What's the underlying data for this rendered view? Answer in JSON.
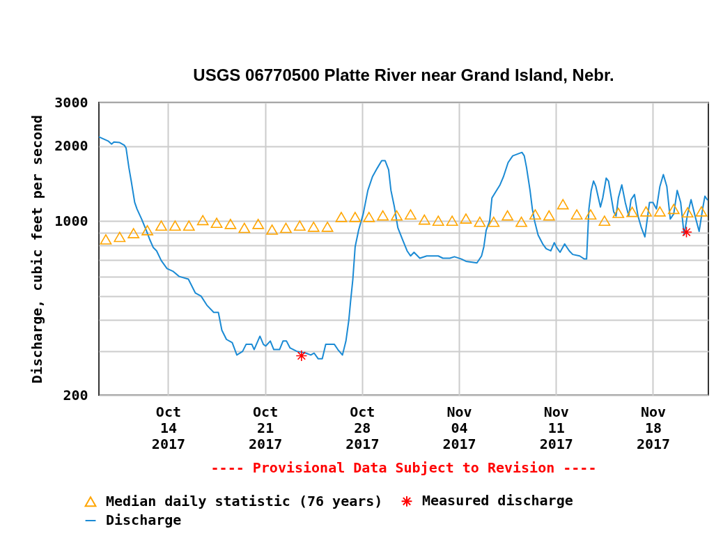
{
  "chart_data": {
    "type": "line",
    "title": "USGS 06770500 Platte River near Grand Island, Nebr.",
    "ylabel": "Discharge, cubic feet per second",
    "annotations": [
      "---- Provisional Data Subject to Revision ----"
    ],
    "xlim": [
      "2017-10-09",
      "2017-11-22"
    ],
    "xticks": [
      {
        "value": "2017-10-14",
        "label": "Oct\n14\n2017"
      },
      {
        "value": "2017-10-21",
        "label": "Oct\n21\n2017"
      },
      {
        "value": "2017-10-28",
        "label": "Oct\n28\n2017"
      },
      {
        "value": "2017-11-04",
        "label": "Nov\n04\n2017"
      },
      {
        "value": "2017-11-11",
        "label": "Nov\n11\n2017"
      },
      {
        "value": "2017-11-18",
        "label": "Nov\n18\n2017"
      }
    ],
    "ylim": [
      200,
      3000
    ],
    "yticks": [
      200,
      {
        "value": 300,
        "label": null
      },
      {
        "value": 400,
        "label": null
      },
      {
        "value": 500,
        "label": null
      },
      {
        "value": 600,
        "label": null
      },
      {
        "value": 700,
        "label": null
      },
      {
        "value": 800,
        "label": null
      },
      {
        "value": 900,
        "label": null
      },
      1000,
      2000,
      3000
    ],
    "log": true,
    "grid": true,
    "legend": "bottom",
    "series": [
      {
        "name": "Median daily statistic (76 years)",
        "type": "scatter",
        "marker": "triangle",
        "color": "#ffa500",
        "x": [
          "2017-10-09T12:00",
          "2017-10-10T12:00",
          "2017-10-11T12:00",
          "2017-10-12T12:00",
          "2017-10-13T12:00",
          "2017-10-14T12:00",
          "2017-10-15T12:00",
          "2017-10-16T12:00",
          "2017-10-17T12:00",
          "2017-10-18T12:00",
          "2017-10-19T12:00",
          "2017-10-20T12:00",
          "2017-10-21T12:00",
          "2017-10-22T12:00",
          "2017-10-23T12:00",
          "2017-10-24T12:00",
          "2017-10-25T12:00",
          "2017-10-26T12:00",
          "2017-10-27T12:00",
          "2017-10-28T12:00",
          "2017-10-29T12:00",
          "2017-10-30T12:00",
          "2017-10-31T12:00",
          "2017-11-01T12:00",
          "2017-11-02T12:00",
          "2017-11-03T12:00",
          "2017-11-04T12:00",
          "2017-11-05T12:00",
          "2017-11-06T12:00",
          "2017-11-07T12:00",
          "2017-11-08T12:00",
          "2017-11-09T12:00",
          "2017-11-10T12:00",
          "2017-11-11T12:00",
          "2017-11-12T12:00",
          "2017-11-13T12:00",
          "2017-11-14T12:00",
          "2017-11-15T12:00",
          "2017-11-16T12:00",
          "2017-11-17T12:00",
          "2017-11-18T12:00",
          "2017-11-19T12:00",
          "2017-11-20T12:00",
          "2017-11-21T12:00"
        ],
        "values": [
          845,
          865,
          895,
          920,
          960,
          960,
          960,
          1010,
          985,
          975,
          940,
          975,
          925,
          940,
          960,
          950,
          950,
          1040,
          1040,
          1040,
          1055,
          1055,
          1065,
          1015,
          1005,
          1005,
          1025,
          995,
          995,
          1055,
          995,
          1065,
          1055,
          1170,
          1065,
          1065,
          1005,
          1080,
          1090,
          1095,
          1095,
          1120,
          1085,
          1095
        ]
      },
      {
        "name": "Measured discharge",
        "type": "scatter",
        "marker": "cross",
        "color": "#ff0000",
        "x": [
          "2017-10-23T15:00",
          "2017-11-20T10:00"
        ],
        "values": [
          288,
          904
        ]
      },
      {
        "name": "Discharge",
        "color": "#1a8ad4",
        "x": [
          "2017-10-09T00:00",
          "2017-10-09T06:00",
          "2017-10-09T16:00",
          "2017-10-09T22:00",
          "2017-10-10T02:00",
          "2017-10-10T12:00",
          "2017-10-10T20:00",
          "2017-10-10T23:00",
          "2017-10-11T04:00",
          "2017-10-11T08:00",
          "2017-10-11T14:00",
          "2017-10-11T18:00",
          "2017-10-12T02:00",
          "2017-10-12T10:00",
          "2017-10-12T16:00",
          "2017-10-12T22:00",
          "2017-10-13T04:00",
          "2017-10-13T12:00",
          "2017-10-13T22:00",
          "2017-10-14T08:00",
          "2017-10-14T19:00",
          "2017-10-15T11:00",
          "2017-10-15T23:00",
          "2017-10-16T09:00",
          "2017-10-16T19:00",
          "2017-10-17T07:00",
          "2017-10-17T15:00",
          "2017-10-17T21:00",
          "2017-10-18T05:00",
          "2017-10-18T15:00",
          "2017-10-18T23:00",
          "2017-10-19T09:00",
          "2017-10-19T15:00",
          "2017-10-20T01:00",
          "2017-10-20T05:00",
          "2017-10-20T15:00",
          "2017-10-20T21:00",
          "2017-10-21T01:00",
          "2017-10-21T09:00",
          "2017-10-21T15:00",
          "2017-10-22T01:00",
          "2017-10-22T07:00",
          "2017-10-22T13:00",
          "2017-10-22T19:00",
          "2017-10-23T07:00",
          "2017-10-23T23:00",
          "2017-10-24T07:00",
          "2017-10-24T13:00",
          "2017-10-24T20:00",
          "2017-10-25T03:00",
          "2017-10-25T09:00",
          "2017-10-26T00:00",
          "2017-10-26T06:00",
          "2017-10-26T14:00",
          "2017-10-26T20:00",
          "2017-10-27T01:00",
          "2017-10-27T04:00",
          "2017-10-27T08:00",
          "2017-10-27T12:00",
          "2017-10-27T18:00",
          "2017-10-28T02:00",
          "2017-10-28T10:00",
          "2017-10-28T18:00",
          "2017-10-29T02:00",
          "2017-10-29T10:00",
          "2017-10-29T16:00",
          "2017-10-29T22:00",
          "2017-10-30T02:00",
          "2017-10-30T08:00",
          "2017-10-30T14:00",
          "2017-10-30T22:00",
          "2017-10-31T06:00",
          "2017-10-31T12:00",
          "2017-10-31T18:00",
          "2017-11-01T04:00",
          "2017-11-01T16:00",
          "2017-11-02T12:00",
          "2017-11-02T20:00",
          "2017-11-03T08:00",
          "2017-11-03T16:00",
          "2017-11-04T04:00",
          "2017-11-04T12:00",
          "2017-11-05T07:00",
          "2017-11-05T15:00",
          "2017-11-05T19:00",
          "2017-11-05T23:00",
          "2017-11-06T05:00",
          "2017-11-06T09:00",
          "2017-11-06T17:00",
          "2017-11-06T23:00",
          "2017-11-07T05:00",
          "2017-11-07T13:00",
          "2017-11-07T21:00",
          "2017-11-08T05:00",
          "2017-11-08T13:00",
          "2017-11-08T17:00",
          "2017-11-08T21:00",
          "2017-11-09T03:00",
          "2017-11-09T07:00",
          "2017-11-09T11:00",
          "2017-11-09T17:00",
          "2017-11-10T01:00",
          "2017-11-10T07:00",
          "2017-11-10T15:00",
          "2017-11-10T21:00",
          "2017-11-11T01:00",
          "2017-11-11T07:00",
          "2017-11-11T15:00",
          "2017-11-11T23:00",
          "2017-11-12T05:00",
          "2017-11-12T17:00",
          "2017-11-13T01:00",
          "2017-11-13T05:00",
          "2017-11-13T09:00",
          "2017-11-13T13:00",
          "2017-11-13T17:00",
          "2017-11-13T21:00",
          "2017-11-14T05:00",
          "2017-11-14T09:00",
          "2017-11-14T15:00",
          "2017-11-14T19:00",
          "2017-11-15T04:00",
          "2017-11-15T08:00",
          "2017-11-15T12:00",
          "2017-11-15T18:00",
          "2017-11-16T00:00",
          "2017-11-16T06:00",
          "2017-11-16T10:00",
          "2017-11-16T16:00",
          "2017-11-16T22:00",
          "2017-11-17T04:00",
          "2017-11-17T10:00",
          "2017-11-17T18:00",
          "2017-11-18T00:00",
          "2017-11-18T06:00",
          "2017-11-18T12:00",
          "2017-11-18T18:00",
          "2017-11-19T00:00",
          "2017-11-19T06:00",
          "2017-11-19T12:00",
          "2017-11-19T18:00",
          "2017-11-20T00:00",
          "2017-11-20T06:00",
          "2017-11-20T12:00",
          "2017-11-20T18:00",
          "2017-11-21T00:00",
          "2017-11-21T08:00",
          "2017-11-21T14:00",
          "2017-11-21T18:00",
          "2017-11-21T22:00"
        ],
        "values": [
          2180,
          2150,
          2100,
          2040,
          2080,
          2070,
          2020,
          1970,
          1640,
          1450,
          1190,
          1120,
          1020,
          920,
          845,
          785,
          760,
          695,
          645,
          630,
          600,
          585,
          515,
          500,
          460,
          430,
          430,
          365,
          335,
          325,
          290,
          300,
          320,
          320,
          305,
          345,
          320,
          315,
          330,
          305,
          305,
          330,
          330,
          310,
          300,
          295,
          290,
          295,
          280,
          280,
          320,
          320,
          305,
          290,
          330,
          400,
          475,
          585,
          790,
          920,
          1070,
          1330,
          1510,
          1630,
          1750,
          1750,
          1610,
          1330,
          1140,
          940,
          845,
          760,
          725,
          750,
          710,
          725,
          725,
          710,
          710,
          720,
          705,
          690,
          680,
          725,
          790,
          920,
          1000,
          1240,
          1330,
          1400,
          1510,
          1720,
          1830,
          1860,
          1890,
          1830,
          1640,
          1330,
          1120,
          1000,
          880,
          810,
          775,
          760,
          820,
          785,
          750,
          810,
          760,
          735,
          725,
          705,
          705,
          1120,
          1330,
          1450,
          1380,
          1140,
          1240,
          1490,
          1450,
          1090,
          1050,
          1240,
          1400,
          1190,
          1050,
          1220,
          1280,
          1050,
          940,
          865,
          1190,
          1190,
          1120,
          1380,
          1540,
          1380,
          1020,
          1070,
          1330,
          1190,
          880,
          1070,
          1220,
          1070,
          910,
          1120,
          1260,
          1220
        ]
      }
    ]
  }
}
